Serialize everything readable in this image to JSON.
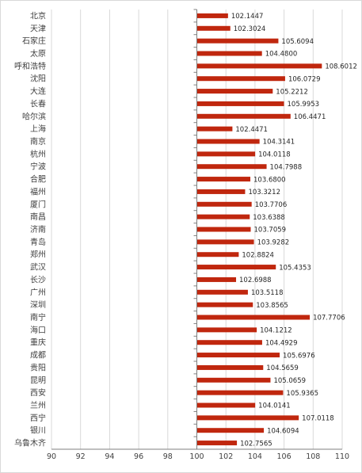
{
  "chart_data": {
    "type": "bar",
    "orientation": "horizontal",
    "categories": [
      "北京",
      "天津",
      "石家庄",
      "太原",
      "呼和浩特",
      "沈阳",
      "大连",
      "长春",
      "哈尔滨",
      "上海",
      "南京",
      "杭州",
      "宁波",
      "合肥",
      "福州",
      "厦门",
      "南昌",
      "济南",
      "青岛",
      "郑州",
      "武汉",
      "长沙",
      "广州",
      "深圳",
      "南宁",
      "海口",
      "重庆",
      "成都",
      "贵阳",
      "昆明",
      "西安",
      "兰州",
      "西宁",
      "银川",
      "乌鲁木齐"
    ],
    "values": [
      102.1447,
      102.3024,
      105.6094,
      104.48,
      108.6012,
      106.0729,
      105.2212,
      105.9953,
      106.4471,
      102.4471,
      104.3141,
      104.0118,
      104.7988,
      103.68,
      103.3212,
      103.7706,
      103.6388,
      103.7059,
      103.9282,
      102.8824,
      105.4353,
      102.6988,
      103.5118,
      103.8565,
      107.7706,
      104.1212,
      104.4929,
      105.6976,
      104.5659,
      105.0659,
      105.9365,
      104.0141,
      107.0118,
      104.6094,
      102.7565
    ],
    "value_labels": [
      "102.1447",
      "102.3024",
      "105.6094",
      "104.4800",
      "108.6012",
      "106.0729",
      "105.2212",
      "105.9953",
      "106.4471",
      "102.4471",
      "104.3141",
      "104.0118",
      "104.7988",
      "103.6800",
      "103.3212",
      "103.7706",
      "103.6388",
      "103.7059",
      "103.9282",
      "102.8824",
      "105.4353",
      "102.6988",
      "103.5118",
      "103.8565",
      "107.7706",
      "104.1212",
      "104.4929",
      "105.6976",
      "104.5659",
      "105.0659",
      "105.9365",
      "104.0141",
      "107.0118",
      "104.6094",
      "102.7565"
    ],
    "x_ticks": [
      "90",
      "92",
      "94",
      "96",
      "98",
      "100",
      "102",
      "104",
      "106",
      "108",
      "110"
    ],
    "xlim": [
      90,
      110
    ],
    "base_value": 100,
    "grid": true,
    "bar_color": "#c0270e",
    "grid_color": "#d9d9d9",
    "axis_color": "#7f7f7f",
    "title": "",
    "xlabel": "",
    "ylabel": ""
  }
}
